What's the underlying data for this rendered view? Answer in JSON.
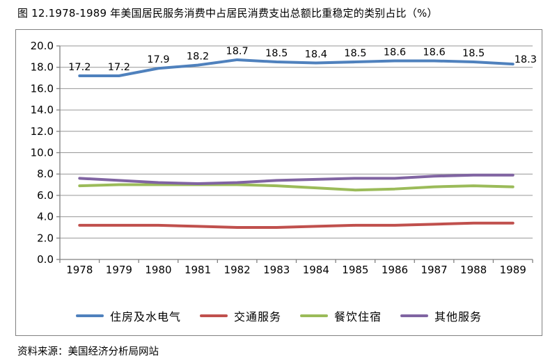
{
  "figure": {
    "title": "图 12.1978-1989 年美国居民服务消费中占居民消费支出总额比重稳定的类别占比（%）",
    "source": "资料来源：美国经济分析局网站"
  },
  "chart_data": {
    "type": "line",
    "title": "图 12.1978-1989 年美国居民服务消费中占居民消费支出总额比重稳定的类别占比（%）",
    "categories": [
      "1978",
      "1979",
      "1980",
      "1981",
      "1982",
      "1983",
      "1984",
      "1985",
      "1986",
      "1987",
      "1988",
      "1989"
    ],
    "series": [
      {
        "name": "住房及水电气",
        "color": "#4F81BD",
        "values": [
          17.2,
          17.2,
          17.9,
          18.2,
          18.7,
          18.5,
          18.4,
          18.5,
          18.6,
          18.6,
          18.5,
          18.3
        ],
        "data_labels": true
      },
      {
        "name": "交通服务",
        "color": "#C0504D",
        "values": [
          3.2,
          3.2,
          3.2,
          3.1,
          3.0,
          3.0,
          3.1,
          3.2,
          3.2,
          3.3,
          3.4,
          3.4
        ],
        "data_labels": false
      },
      {
        "name": "餐饮住宿",
        "color": "#9BBB59",
        "values": [
          6.9,
          7.0,
          7.0,
          7.0,
          7.0,
          6.9,
          6.7,
          6.5,
          6.6,
          6.8,
          6.9,
          6.8
        ],
        "data_labels": false
      },
      {
        "name": "其他服务",
        "color": "#8064A2",
        "values": [
          7.6,
          7.4,
          7.2,
          7.1,
          7.2,
          7.4,
          7.5,
          7.6,
          7.6,
          7.8,
          7.9,
          7.9
        ],
        "data_labels": false
      }
    ],
    "ylim": [
      0,
      20
    ],
    "ytick_step": 2,
    "ytick_decimals": 1,
    "grid": true,
    "legend_position": "bottom",
    "axis_color": "#808080",
    "grid_color": "#969696",
    "label_color": "#000000"
  }
}
